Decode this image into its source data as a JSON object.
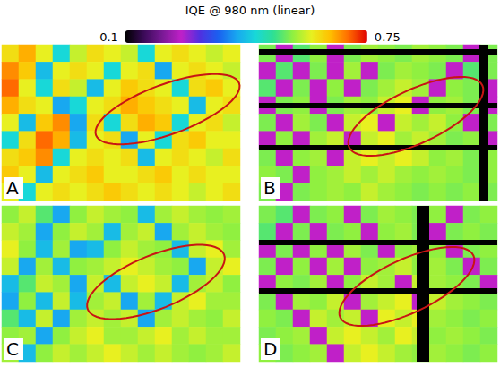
{
  "chart_data": {
    "type": "heatmap",
    "title": "IQE @ 980 nm (linear)",
    "colorbar": {
      "range": [
        0.1,
        0.75
      ],
      "ticks": [
        0.1,
        0.75
      ]
    },
    "tick_labels": false,
    "panels": [
      {
        "label": "A",
        "cells": [
          [
            0.62,
            0.66,
            0.6,
            0.45,
            0.58,
            0.62,
            0.6,
            0.58,
            0.45,
            0.6,
            0.62,
            0.6,
            0.58,
            0.6
          ],
          [
            0.68,
            0.64,
            0.42,
            0.6,
            0.62,
            0.6,
            0.45,
            0.6,
            0.62,
            0.4,
            0.6,
            0.62,
            0.6,
            0.58
          ],
          [
            0.7,
            0.6,
            0.45,
            0.62,
            0.58,
            0.42,
            0.6,
            0.64,
            0.62,
            0.6,
            0.45,
            0.62,
            0.64,
            0.6
          ],
          [
            0.66,
            0.62,
            0.6,
            0.4,
            0.45,
            0.6,
            0.62,
            0.66,
            0.64,
            0.62,
            0.6,
            0.42,
            0.6,
            0.62
          ],
          [
            0.6,
            0.42,
            0.64,
            0.68,
            0.4,
            0.62,
            0.45,
            0.62,
            0.66,
            0.64,
            0.45,
            0.6,
            0.62,
            0.58
          ],
          [
            0.45,
            0.62,
            0.7,
            0.66,
            0.42,
            0.6,
            0.62,
            0.4,
            0.6,
            0.45,
            0.62,
            0.64,
            0.6,
            0.6
          ],
          [
            0.62,
            0.64,
            0.68,
            0.45,
            0.6,
            0.62,
            0.6,
            0.62,
            0.42,
            0.6,
            0.62,
            0.6,
            0.58,
            0.62
          ],
          [
            0.64,
            0.6,
            0.42,
            0.6,
            0.62,
            0.64,
            0.6,
            0.6,
            0.62,
            0.64,
            0.6,
            0.62,
            0.6,
            0.6
          ],
          [
            0.6,
            0.45,
            0.6,
            0.62,
            0.6,
            0.62,
            0.64,
            0.62,
            0.6,
            0.62,
            0.6,
            0.58,
            0.6,
            0.62
          ]
        ]
      },
      {
        "label": "B",
        "cells": [
          [
            0.54,
            0.25,
            0.52,
            0.55,
            0.25,
            0.54,
            0.56,
            0.55,
            0.54,
            0.56,
            0.55,
            0.54,
            0.25,
            0.54
          ],
          [
            0.25,
            0.52,
            0.25,
            0.54,
            0.25,
            0.56,
            0.25,
            0.54,
            0.56,
            0.55,
            0.54,
            0.25,
            0.52,
            0.54
          ],
          [
            0.52,
            0.25,
            0.54,
            0.25,
            0.55,
            0.25,
            0.54,
            0.56,
            0.58,
            0.56,
            0.25,
            0.55,
            0.54,
            0.25
          ],
          [
            0.25,
            0.54,
            0.55,
            0.25,
            0.54,
            0.56,
            0.55,
            0.58,
            0.6,
            0.25,
            0.55,
            0.56,
            0.54,
            0.25
          ],
          [
            0.54,
            0.25,
            0.56,
            0.54,
            0.25,
            0.58,
            0.6,
            0.25,
            0.58,
            0.56,
            0.58,
            0.55,
            0.25,
            0.54
          ],
          [
            0.25,
            0.55,
            0.25,
            0.56,
            0.58,
            0.25,
            0.58,
            0.6,
            0.56,
            0.58,
            0.56,
            0.54,
            0.55,
            0.25
          ],
          [
            0.54,
            0.25,
            0.55,
            0.56,
            0.25,
            0.58,
            0.6,
            0.58,
            0.6,
            0.58,
            0.55,
            0.56,
            0.54,
            0.55
          ],
          [
            0.55,
            0.54,
            0.25,
            0.55,
            0.56,
            0.58,
            0.56,
            0.58,
            0.56,
            0.55,
            0.56,
            0.55,
            0.54,
            0.55
          ],
          [
            0.54,
            0.25,
            0.54,
            0.55,
            0.56,
            0.55,
            0.58,
            0.56,
            0.55,
            0.54,
            0.55,
            0.54,
            0.55,
            0.54
          ]
        ]
      },
      {
        "label": "C",
        "cells": [
          [
            0.55,
            0.58,
            0.52,
            0.4,
            0.55,
            0.58,
            0.56,
            0.55,
            0.42,
            0.56,
            0.58,
            0.56,
            0.55,
            0.56
          ],
          [
            0.58,
            0.56,
            0.4,
            0.55,
            0.58,
            0.56,
            0.42,
            0.56,
            0.58,
            0.4,
            0.56,
            0.58,
            0.56,
            0.55
          ],
          [
            0.6,
            0.55,
            0.42,
            0.56,
            0.4,
            0.42,
            0.55,
            0.58,
            0.56,
            0.55,
            0.42,
            0.58,
            0.6,
            0.56
          ],
          [
            0.58,
            0.4,
            0.56,
            0.42,
            0.55,
            0.56,
            0.58,
            0.6,
            0.58,
            0.56,
            0.55,
            0.4,
            0.58,
            0.6
          ],
          [
            0.42,
            0.52,
            0.58,
            0.56,
            0.4,
            0.58,
            0.42,
            0.58,
            0.6,
            0.58,
            0.42,
            0.56,
            0.58,
            0.55
          ],
          [
            0.4,
            0.55,
            0.42,
            0.58,
            0.42,
            0.56,
            0.58,
            0.4,
            0.56,
            0.42,
            0.58,
            0.6,
            0.56,
            0.56
          ],
          [
            0.52,
            0.42,
            0.58,
            0.4,
            0.56,
            0.58,
            0.56,
            0.58,
            0.4,
            0.56,
            0.58,
            0.56,
            0.55,
            0.58
          ],
          [
            0.55,
            0.56,
            0.4,
            0.55,
            0.58,
            0.6,
            0.56,
            0.56,
            0.58,
            0.6,
            0.56,
            0.58,
            0.56,
            0.56
          ],
          [
            0.56,
            0.42,
            0.55,
            0.58,
            0.56,
            0.58,
            0.6,
            0.58,
            0.56,
            0.58,
            0.56,
            0.55,
            0.56,
            0.58
          ]
        ]
      },
      {
        "label": "D",
        "cells": [
          [
            0.54,
            0.52,
            0.25,
            0.54,
            0.55,
            0.25,
            0.54,
            0.56,
            0.55,
            0.54,
            0.55,
            0.25,
            0.54,
            0.55
          ],
          [
            0.52,
            0.25,
            0.54,
            0.25,
            0.54,
            0.55,
            0.25,
            0.55,
            0.56,
            0.54,
            0.25,
            0.54,
            0.55,
            0.54
          ],
          [
            0.25,
            0.54,
            0.25,
            0.55,
            0.25,
            0.56,
            0.54,
            0.25,
            0.55,
            0.56,
            0.55,
            0.25,
            0.54,
            0.55
          ],
          [
            0.54,
            0.25,
            0.55,
            0.25,
            0.56,
            0.25,
            0.55,
            0.56,
            0.58,
            0.55,
            0.56,
            0.54,
            0.25,
            0.54
          ],
          [
            0.25,
            0.55,
            0.54,
            0.56,
            0.25,
            0.55,
            0.58,
            0.56,
            0.25,
            0.58,
            0.56,
            0.55,
            0.54,
            0.25
          ],
          [
            0.54,
            0.25,
            0.56,
            0.55,
            0.58,
            0.25,
            0.56,
            0.58,
            0.6,
            0.25,
            0.58,
            0.56,
            0.55,
            0.54
          ],
          [
            0.55,
            0.54,
            0.25,
            0.58,
            0.56,
            0.58,
            0.25,
            0.6,
            0.58,
            0.6,
            0.56,
            0.55,
            0.54,
            0.55
          ],
          [
            0.54,
            0.55,
            0.56,
            0.25,
            0.58,
            0.6,
            0.58,
            0.56,
            0.6,
            0.58,
            0.55,
            0.56,
            0.55,
            0.54
          ],
          [
            0.55,
            0.54,
            0.55,
            0.56,
            0.25,
            0.58,
            0.6,
            0.58,
            0.56,
            0.55,
            0.56,
            0.55,
            0.54,
            0.55
          ]
        ]
      }
    ]
  }
}
